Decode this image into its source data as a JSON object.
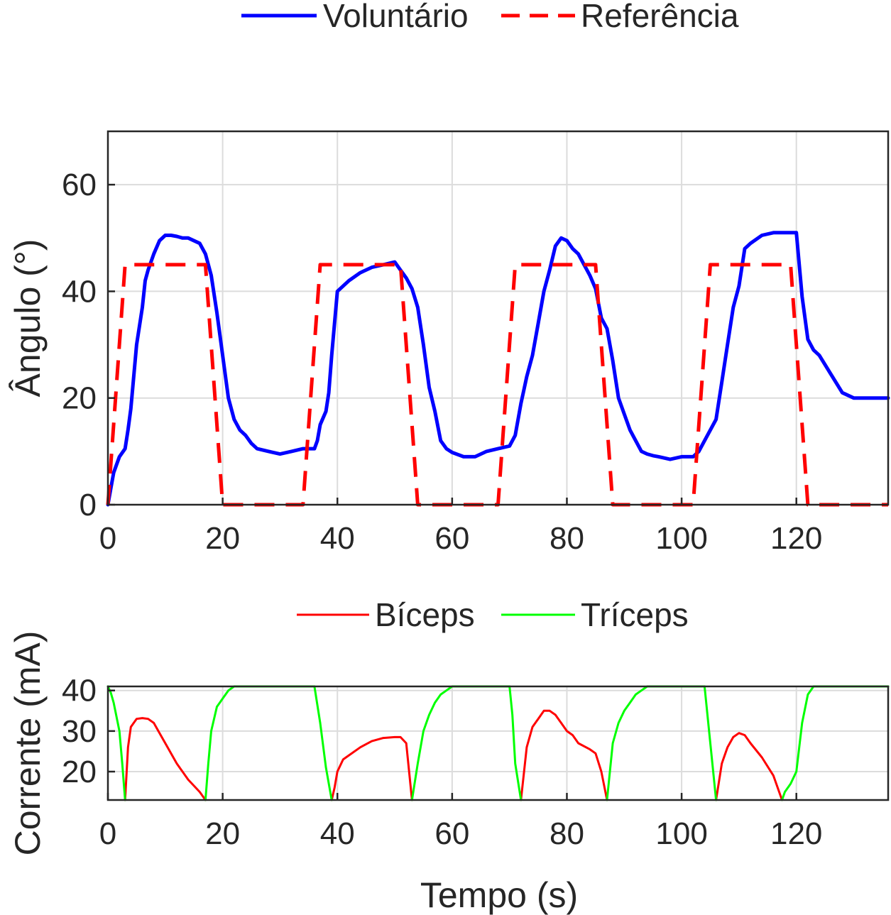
{
  "chart_data": [
    {
      "type": "line",
      "ylabel": "Ângulo (°)",
      "xlabel": "",
      "xlim": [
        0,
        136
      ],
      "ylim": [
        0,
        70
      ],
      "xticks": [
        0,
        20,
        40,
        60,
        80,
        100,
        120
      ],
      "yticks": [
        0,
        20,
        40,
        60
      ],
      "grid": true,
      "legend": {
        "position": "top-center",
        "orientation": "horizontal"
      },
      "series": [
        {
          "name": "Voluntário",
          "color": "#0000ff",
          "style": "solid",
          "x": [
            0,
            0.5,
            1,
            2,
            3,
            3.5,
            4,
            5,
            6,
            6.5,
            7,
            8,
            9,
            10,
            11,
            12,
            13,
            14,
            16,
            17,
            18,
            19,
            20,
            21,
            22,
            23,
            24,
            25,
            26,
            28,
            30,
            32,
            34,
            36,
            36.5,
            37,
            38,
            38.5,
            39,
            40,
            41,
            42,
            44,
            46,
            48,
            50,
            51,
            52,
            53,
            54,
            55,
            56,
            57,
            58,
            59,
            60,
            62,
            64,
            66,
            68,
            70,
            71,
            72,
            72.5,
            73,
            74,
            75,
            76,
            77,
            78,
            79,
            80,
            81,
            82,
            83,
            84,
            85,
            86,
            87,
            88,
            89,
            90,
            91,
            92,
            93,
            94,
            95,
            96,
            98,
            100,
            102,
            103,
            104,
            105,
            106,
            107,
            108,
            109,
            110,
            111,
            112,
            114,
            116,
            118,
            119,
            120,
            121,
            122,
            123,
            124,
            126,
            128,
            130,
            132,
            134,
            136
          ],
          "y": [
            0,
            3,
            6,
            9,
            10.5,
            14,
            18,
            30,
            37,
            42,
            44,
            47,
            49.5,
            50.5,
            50.5,
            50.3,
            50,
            50,
            49,
            47,
            43,
            36,
            28,
            20,
            16,
            14,
            13,
            11.5,
            10.5,
            10,
            9.5,
            10,
            10.5,
            10.5,
            12,
            15,
            17.5,
            21,
            28,
            40,
            41,
            42,
            43.5,
            44.5,
            45,
            45.5,
            44,
            42.5,
            40.5,
            37,
            30,
            22,
            17.5,
            12,
            10.5,
            9.8,
            9,
            9,
            10,
            10.5,
            11,
            13,
            19,
            21.5,
            24,
            28,
            34,
            40,
            44,
            48.5,
            50,
            49.5,
            48,
            47,
            45,
            43,
            40.5,
            35,
            33,
            27,
            20,
            17,
            14,
            12,
            10,
            9.5,
            9.2,
            9,
            8.5,
            9,
            9,
            10,
            12,
            14,
            16,
            23,
            30,
            37,
            41,
            48,
            49,
            50.5,
            51,
            51,
            51,
            51,
            39,
            31,
            29,
            28,
            24.5,
            21,
            20,
            20,
            20,
            20
          ]
        },
        {
          "name": "Referência",
          "color": "#ff0000",
          "style": "dashed",
          "x": [
            0,
            3,
            17,
            20,
            24,
            31,
            34,
            37,
            51,
            54,
            58,
            64,
            68,
            71,
            85,
            88,
            92,
            98,
            102,
            105,
            119,
            122,
            126,
            136
          ],
          "y": [
            0,
            45,
            45,
            0,
            0,
            0,
            0,
            45,
            45,
            0,
            0,
            0,
            0,
            45,
            45,
            0,
            0,
            0,
            0,
            45,
            45,
            0,
            0,
            0
          ]
        }
      ]
    },
    {
      "type": "line",
      "ylabel": "Corrente (mA)",
      "xlabel": "Tempo (s)",
      "xlim": [
        0,
        136
      ],
      "ylim": [
        13,
        41
      ],
      "xticks": [
        0,
        20,
        40,
        60,
        80,
        100,
        120
      ],
      "yticks": [
        20,
        30,
        40
      ],
      "grid": true,
      "legend": {
        "position": "top-center",
        "orientation": "horizontal"
      },
      "series": [
        {
          "name": "Bíceps",
          "color": "#ff0000",
          "style": "solid",
          "segments": [
            {
              "x": [
                3,
                3.5,
                4,
                5,
                6,
                7,
                8,
                9,
                10,
                12,
                14,
                16,
                17
              ],
              "y": [
                13,
                26,
                31,
                33,
                33.2,
                33,
                32,
                29.5,
                27,
                22,
                18,
                15,
                13
              ]
            },
            {
              "x": [
                39,
                39.5,
                40,
                41,
                42,
                44,
                46,
                48,
                50,
                51,
                52,
                53
              ],
              "y": [
                13,
                16,
                20,
                23,
                24,
                26,
                27.5,
                28.3,
                28.5,
                28.5,
                27,
                13
              ]
            },
            {
              "x": [
                72,
                73,
                74,
                75,
                76,
                77,
                78,
                79,
                80,
                81,
                82,
                84,
                85,
                86,
                87
              ],
              "y": [
                13,
                26,
                31,
                33,
                35,
                35,
                34,
                32,
                30,
                29,
                27,
                25.5,
                24.5,
                20,
                13
              ]
            },
            {
              "x": [
                106,
                107,
                108,
                109,
                110,
                111,
                112,
                114,
                116,
                117.5
              ],
              "y": [
                13,
                22,
                26,
                28.5,
                29.5,
                29,
                27,
                23.5,
                19,
                13
              ]
            }
          ]
        },
        {
          "name": "Tríceps",
          "color": "#00ff00",
          "style": "solid",
          "segments": [
            {
              "x": [
                0,
                0.5,
                1,
                2,
                2.5,
                3
              ],
              "y": [
                41,
                39.5,
                37,
                30,
                22,
                13
              ]
            },
            {
              "x": [
                17,
                17.5,
                18,
                19,
                19.5,
                20,
                21,
                22,
                36
              ],
              "y": [
                13,
                22,
                30,
                36,
                37,
                38,
                40,
                41,
                41
              ]
            },
            {
              "x": [
                36,
                37,
                38,
                39
              ],
              "y": [
                41,
                32,
                21,
                13
              ]
            },
            {
              "x": [
                53,
                54,
                55,
                56,
                57,
                58,
                59,
                60,
                61,
                70
              ],
              "y": [
                13,
                22,
                30,
                34,
                37,
                39,
                40,
                41,
                41,
                41
              ]
            },
            {
              "x": [
                70,
                70.5,
                71,
                72
              ],
              "y": [
                41,
                34,
                22,
                13
              ]
            },
            {
              "x": [
                87,
                88,
                89,
                90,
                91,
                92,
                93,
                94,
                95,
                104
              ],
              "y": [
                13,
                27,
                32,
                35,
                37,
                39,
                40,
                41,
                41,
                41
              ]
            },
            {
              "x": [
                104,
                105,
                106
              ],
              "y": [
                41,
                27,
                13
              ]
            },
            {
              "x": [
                117.5,
                118,
                119,
                120,
                121,
                122,
                123,
                136
              ],
              "y": [
                13,
                15,
                17,
                20,
                32,
                39,
                41,
                41
              ]
            }
          ]
        }
      ]
    }
  ]
}
